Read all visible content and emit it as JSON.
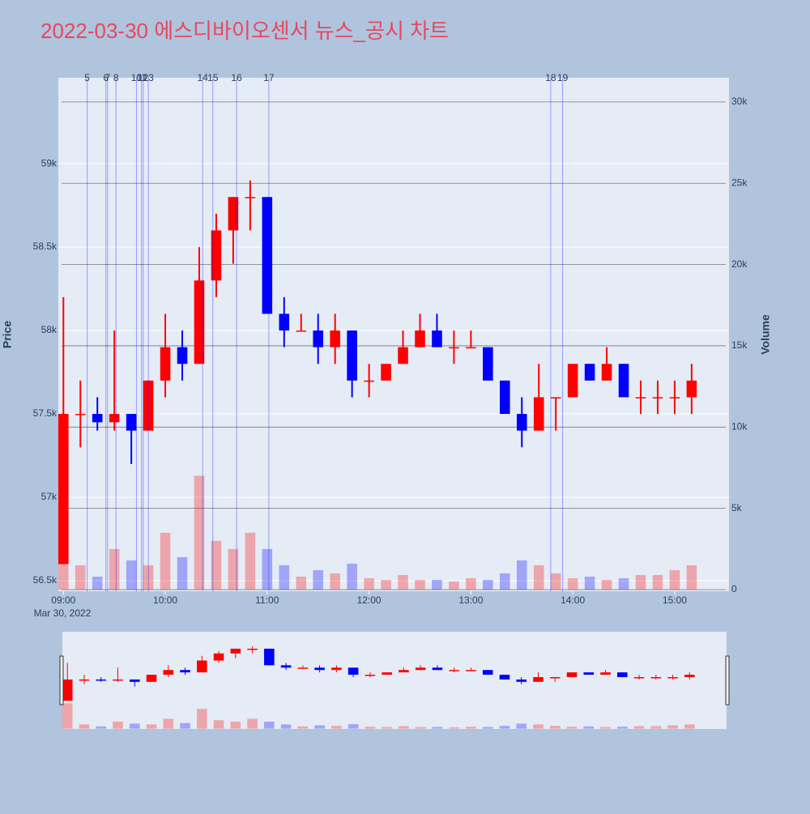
{
  "chart_data": {
    "type": "candlestick",
    "title": "2022-03-30 에스디바이오센서 뉴스_공시 차트",
    "y_label": "Price",
    "y2_label": "Volume",
    "x_sublabel": "Mar 30, 2022",
    "increasing_color": "#ff0000",
    "decreasing_color": "#0000ff",
    "x": [
      "09:00",
      "09:10",
      "09:20",
      "09:30",
      "09:40",
      "09:50",
      "10:00",
      "10:10",
      "10:20",
      "10:30",
      "10:40",
      "10:50",
      "11:00",
      "11:10",
      "11:20",
      "11:30",
      "11:40",
      "11:50",
      "12:00",
      "12:10",
      "12:20",
      "12:30",
      "12:40",
      "12:50",
      "13:00",
      "13:10",
      "13:20",
      "13:30",
      "13:40",
      "13:50",
      "14:00",
      "14:10",
      "14:20",
      "14:30",
      "14:40",
      "14:50",
      "15:00",
      "15:10"
    ],
    "open": [
      56600,
      57500,
      57500,
      57450,
      57500,
      57400,
      57700,
      57900,
      57800,
      58300,
      58600,
      58800,
      58800,
      58100,
      58000,
      58000,
      57900,
      58000,
      57700,
      57700,
      57800,
      57900,
      58000,
      57900,
      57900,
      57900,
      57700,
      57500,
      57400,
      57600,
      57600,
      57800,
      57700,
      57800,
      57600,
      57600,
      57600,
      57600
    ],
    "high": [
      58200,
      57700,
      57600,
      58000,
      57500,
      57700,
      58100,
      58000,
      58500,
      58700,
      58800,
      58900,
      58800,
      58200,
      58100,
      58100,
      58100,
      58000,
      57800,
      57800,
      58000,
      58100,
      58100,
      58000,
      58000,
      57900,
      57700,
      57600,
      57800,
      57600,
      57800,
      57800,
      57900,
      57800,
      57700,
      57700,
      57700,
      57800
    ],
    "low": [
      56600,
      57300,
      57400,
      57400,
      57200,
      57400,
      57600,
      57700,
      57800,
      58200,
      58400,
      58600,
      58100,
      57900,
      58000,
      57800,
      57800,
      57600,
      57600,
      57700,
      57800,
      57900,
      57900,
      57800,
      57900,
      57700,
      57500,
      57300,
      57400,
      57400,
      57600,
      57700,
      57700,
      57600,
      57500,
      57500,
      57500,
      57500
    ],
    "close": [
      57500,
      57500,
      57450,
      57500,
      57400,
      57700,
      57900,
      57800,
      58300,
      58600,
      58800,
      58800,
      58100,
      58000,
      58000,
      57900,
      58000,
      57700,
      57700,
      57800,
      57900,
      58000,
      57900,
      57900,
      57900,
      57700,
      57500,
      57400,
      57600,
      57600,
      57800,
      57700,
      57800,
      57600,
      57600,
      57600,
      57600,
      57700
    ],
    "volume": [
      9000,
      1500,
      800,
      2500,
      1800,
      1500,
      3500,
      2000,
      7000,
      3000,
      2500,
      3500,
      2500,
      1500,
      800,
      1200,
      1000,
      1600,
      700,
      600,
      900,
      600,
      600,
      500,
      700,
      600,
      1000,
      1800,
      1500,
      1000,
      700,
      800,
      600,
      700,
      900,
      900,
      1200,
      1500
    ],
    "news": [
      {
        "label": "5",
        "x": "09:14"
      },
      {
        "label": "6",
        "x": "09:25"
      },
      {
        "label": "7",
        "x": "09:26"
      },
      {
        "label": "8",
        "x": "09:31"
      },
      {
        "label": "10",
        "x": "09:43"
      },
      {
        "label": "11",
        "x": "09:46"
      },
      {
        "label": "12",
        "x": "09:47"
      },
      {
        "label": "13",
        "x": "09:50"
      },
      {
        "label": "14",
        "x": "10:22"
      },
      {
        "label": "15",
        "x": "10:28"
      },
      {
        "label": "16",
        "x": "10:42"
      },
      {
        "label": "17",
        "x": "11:01"
      },
      {
        "label": "18",
        "x": "13:47"
      },
      {
        "label": "19",
        "x": "13:54"
      }
    ],
    "xlim": [
      "08:57",
      "15:32"
    ],
    "xticks": [
      "09:00",
      "10:00",
      "11:00",
      "12:00",
      "13:00",
      "14:00",
      "15:00"
    ],
    "ylim": [
      56437,
      59515
    ],
    "yticks": [
      {
        "value": 56500,
        "label": "56.5k"
      },
      {
        "value": 57000,
        "label": "57k"
      },
      {
        "value": 57500,
        "label": "57.5k"
      },
      {
        "value": 58000,
        "label": "58k"
      },
      {
        "value": 58500,
        "label": "58.5k"
      },
      {
        "value": 59000,
        "label": "59k"
      }
    ],
    "y2lim": [
      -100,
      31490
    ],
    "y2ticks": [
      0,
      {
        "value": 5000,
        "label": "5k"
      },
      {
        "value": 10000,
        "label": "10k"
      },
      {
        "value": 15000,
        "label": "15k"
      },
      {
        "value": 20000,
        "label": "20k"
      },
      {
        "value": 25000,
        "label": "25k"
      },
      {
        "value": 30000,
        "label": "30k"
      }
    ],
    "grid": true
  }
}
